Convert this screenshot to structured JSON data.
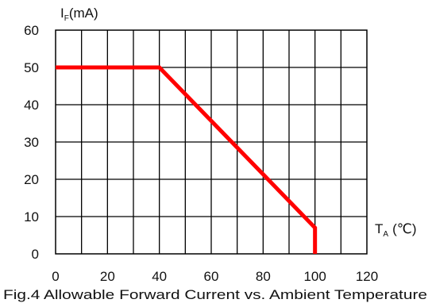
{
  "chart_data": {
    "type": "line",
    "title": "",
    "caption": "Fig.4 Allowable Forward Current vs. Ambient Temperature",
    "ylabel": {
      "main": "I",
      "sub": "F",
      "unit": "(mA)"
    },
    "xlabel": {
      "main": "T",
      "sub": "A",
      "unit": "(℃)"
    },
    "xlim": [
      0,
      120
    ],
    "ylim": [
      0,
      60
    ],
    "x_ticks": [
      0,
      20,
      40,
      60,
      80,
      100,
      120
    ],
    "y_ticks": [
      0,
      10,
      20,
      30,
      40,
      50,
      60
    ],
    "grid": true,
    "grid_x_step": 10,
    "grid_y_step": 10,
    "series": [
      {
        "color": "#ff0000",
        "x": [
          0,
          40,
          100,
          100
        ],
        "y": [
          50,
          50,
          7,
          0
        ]
      }
    ]
  }
}
